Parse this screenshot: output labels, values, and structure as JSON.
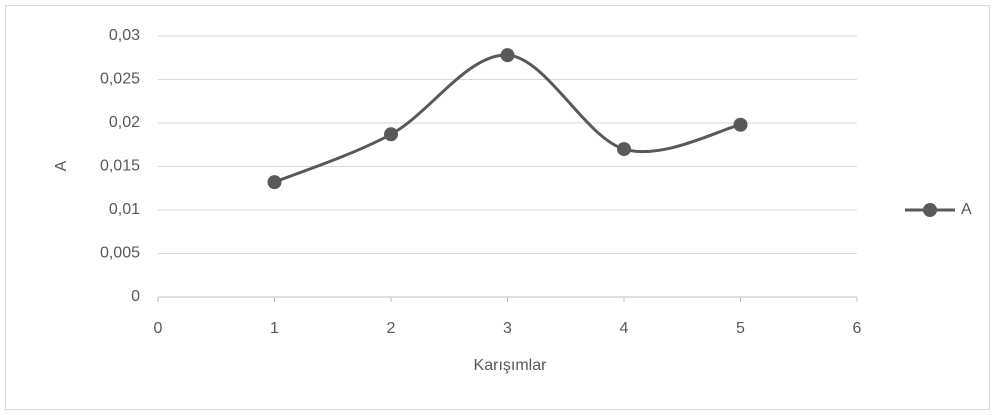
{
  "chart_data": {
    "type": "scatter",
    "series": [
      {
        "name": "A",
        "color": "#595959",
        "x": [
          1,
          2,
          3,
          4,
          5
        ],
        "values": [
          0.0132,
          0.0187,
          0.0278,
          0.017,
          0.0198
        ]
      }
    ],
    "smooth": true,
    "x_label": "Karışımlar",
    "y_label": "A",
    "xlim": [
      0,
      6
    ],
    "xticks": [
      0,
      1,
      2,
      3,
      4,
      5,
      6
    ],
    "ylim": [
      0,
      0.03
    ],
    "yticks": [
      0,
      {
        "value": 0.005,
        "label": "0,005"
      },
      {
        "value": 0.01,
        "label": "0,01"
      },
      {
        "value": 0.015,
        "label": "0,015"
      },
      {
        "value": 0.02,
        "label": "0,02"
      },
      {
        "value": 0.025,
        "label": "0,025"
      },
      {
        "value": 0.03,
        "label": "0,03"
      }
    ],
    "grid": true,
    "legend": "right"
  }
}
